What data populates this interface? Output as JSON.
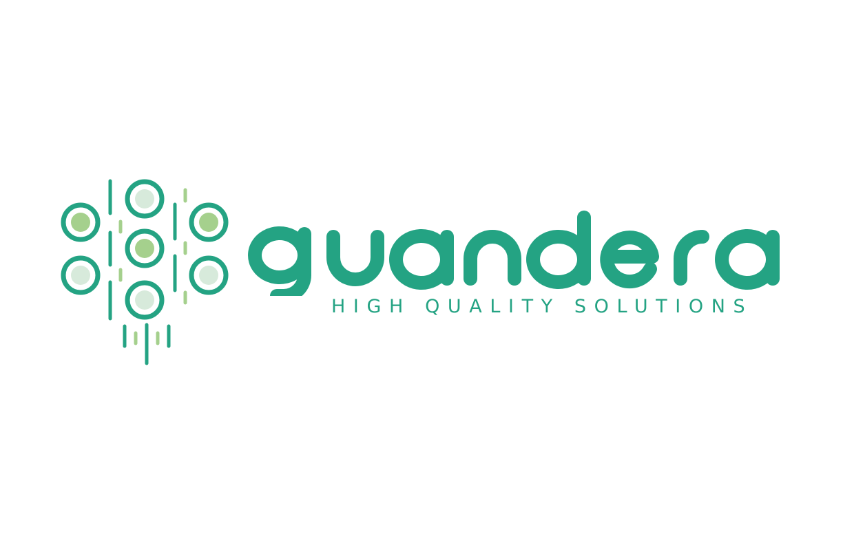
{
  "brand": {
    "name": "guandera",
    "tagline": "HIGH QUALITY SOLUTIONS"
  },
  "colors": {
    "primary": "#24a383",
    "light_green": "#a5d08d",
    "pale_green": "#d7eadb",
    "background": "#ffffff"
  },
  "icons": {
    "logo_mark": "circuit-tree-icon"
  }
}
